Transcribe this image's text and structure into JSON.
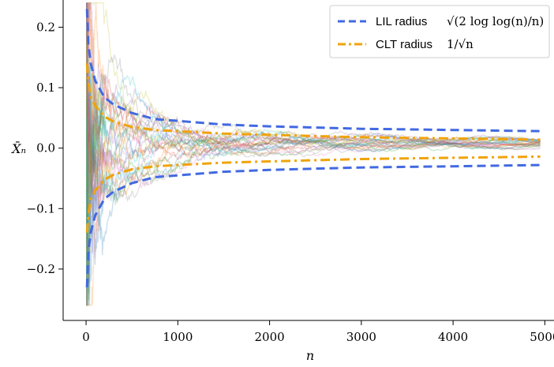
{
  "chart_data": {
    "type": "line",
    "xlabel": "n",
    "ylabel": "X̄ₙ",
    "xlim": [
      -250,
      5100
    ],
    "ylim": [
      -0.285,
      0.245
    ],
    "xticks": [
      0,
      1000,
      2000,
      3000,
      4000,
      5000
    ],
    "xtick_labels": [
      "0",
      "1000",
      "2000",
      "3000",
      "4000",
      "5000"
    ],
    "yticks": [
      -0.2,
      -0.1,
      0.0,
      0.1,
      0.2
    ],
    "ytick_labels": [
      "−0.2",
      "−0.1",
      "0.0",
      "0.1",
      "0.2"
    ],
    "legend_position": "top-right",
    "series": [
      {
        "name": "LIL radius",
        "name_math": "√(2 log log(n)/n)",
        "style": "dashed",
        "color": "#4169E1",
        "x": [
          10,
          25,
          50,
          100,
          200,
          300,
          500,
          750,
          1000,
          1500,
          2000,
          2500,
          3000,
          3500,
          4000,
          4500,
          4950
        ],
        "upper": [
          0.23,
          0.172,
          0.14,
          0.111,
          0.084,
          0.072,
          0.058,
          0.048,
          0.045,
          0.039,
          0.036,
          0.034,
          0.032,
          0.031,
          0.03,
          0.029,
          0.028
        ],
        "lower": [
          -0.23,
          -0.172,
          -0.14,
          -0.111,
          -0.084,
          -0.072,
          -0.058,
          -0.048,
          -0.045,
          -0.039,
          -0.036,
          -0.034,
          -0.032,
          -0.031,
          -0.03,
          -0.029,
          -0.028
        ]
      },
      {
        "name": "CLT radius",
        "name_math": "1/√n",
        "style": "dashdot",
        "color": "#F0A30A",
        "x": [
          10,
          25,
          50,
          100,
          200,
          300,
          500,
          750,
          1000,
          1500,
          2000,
          2500,
          3000,
          3500,
          4000,
          4500,
          4950
        ],
        "upper": [
          0.14,
          0.11,
          0.085,
          0.07,
          0.052,
          0.044,
          0.035,
          0.03,
          0.028,
          0.024,
          0.022,
          0.02,
          0.018,
          0.017,
          0.016,
          0.015,
          0.014
        ],
        "lower": [
          -0.14,
          -0.11,
          -0.085,
          -0.07,
          -0.052,
          -0.044,
          -0.035,
          -0.03,
          -0.028,
          -0.024,
          -0.022,
          -0.02,
          -0.018,
          -0.017,
          -0.016,
          -0.015,
          -0.014
        ]
      }
    ],
    "sample_paths": {
      "count": 30,
      "x_max": 4950,
      "opacity": 0.25,
      "colors": [
        "#1f77b4",
        "#ff7f0e",
        "#2ca02c",
        "#d62728",
        "#9467bd",
        "#8c564b",
        "#e377c2",
        "#7f7f7f",
        "#bcbd22",
        "#17becf"
      ]
    }
  }
}
